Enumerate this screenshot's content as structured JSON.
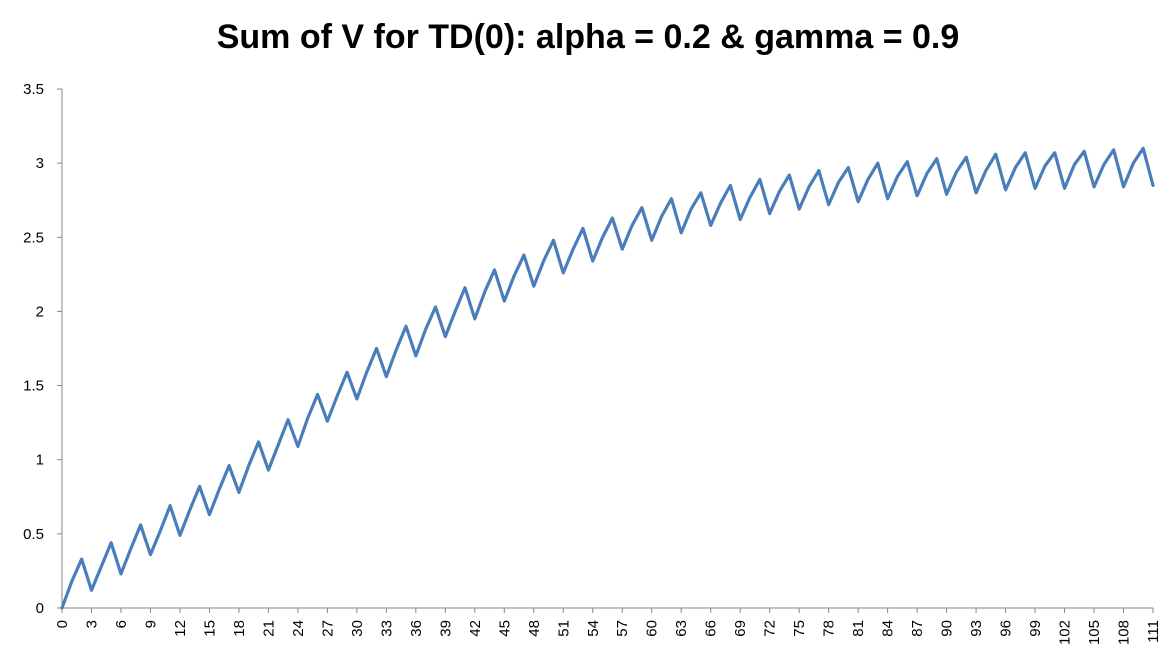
{
  "chart_data": {
    "type": "line",
    "title": "Sum of V for TD(0): alpha = 0.2 & gamma = 0.9",
    "xlabel": "",
    "ylabel": "",
    "ylim": [
      0,
      3.5
    ],
    "yticks": [
      "0",
      "0.5",
      "1",
      "1.5",
      "2",
      "2.5",
      "3",
      "3.5"
    ],
    "xticks": [
      "0",
      "3",
      "6",
      "9",
      "12",
      "15",
      "18",
      "21",
      "24",
      "27",
      "30",
      "33",
      "36",
      "39",
      "42",
      "45",
      "48",
      "51",
      "54",
      "57",
      "60",
      "63",
      "66",
      "69",
      "72",
      "75",
      "78",
      "81",
      "84",
      "87",
      "90",
      "93",
      "96",
      "99",
      "102",
      "105",
      "108",
      "111"
    ],
    "series": [
      {
        "name": "Sum of V",
        "color": "#4a7ebb",
        "x": [
          0,
          1,
          2,
          3,
          4,
          5,
          6,
          7,
          8,
          9,
          10,
          11,
          12,
          13,
          14,
          15,
          16,
          17,
          18,
          19,
          20,
          21,
          22,
          23,
          24,
          25,
          26,
          27,
          28,
          29,
          30,
          31,
          32,
          33,
          34,
          35,
          36,
          37,
          38,
          39,
          40,
          41,
          42,
          43,
          44,
          45,
          46,
          47,
          48,
          49,
          50,
          51,
          52,
          53,
          54,
          55,
          56,
          57,
          58,
          59,
          60,
          61,
          62,
          63,
          64,
          65,
          66,
          67,
          68,
          69,
          70,
          71,
          72,
          73,
          74,
          75,
          76,
          77,
          78,
          79,
          80,
          81,
          82,
          83,
          84,
          85,
          86,
          87,
          88,
          89,
          90,
          91,
          92,
          93,
          94,
          95,
          96,
          97,
          98,
          99,
          100,
          101,
          102,
          103,
          104,
          105,
          106,
          107,
          108,
          109,
          110,
          111
        ],
        "values": [
          0,
          0.18,
          0.33,
          0.12,
          0.28,
          0.44,
          0.23,
          0.4,
          0.56,
          0.36,
          0.52,
          0.69,
          0.49,
          0.66,
          0.82,
          0.63,
          0.8,
          0.96,
          0.78,
          0.96,
          1.12,
          0.93,
          1.1,
          1.27,
          1.09,
          1.28,
          1.44,
          1.26,
          1.43,
          1.59,
          1.41,
          1.59,
          1.75,
          1.56,
          1.74,
          1.9,
          1.7,
          1.88,
          2.03,
          1.83,
          2.0,
          2.16,
          1.95,
          2.13,
          2.28,
          2.07,
          2.24,
          2.38,
          2.17,
          2.34,
          2.48,
          2.26,
          2.42,
          2.56,
          2.34,
          2.5,
          2.63,
          2.42,
          2.58,
          2.7,
          2.48,
          2.64,
          2.76,
          2.53,
          2.69,
          2.8,
          2.58,
          2.73,
          2.85,
          2.62,
          2.77,
          2.89,
          2.66,
          2.81,
          2.92,
          2.69,
          2.84,
          2.95,
          2.72,
          2.87,
          2.97,
          2.74,
          2.89,
          3.0,
          2.76,
          2.91,
          3.01,
          2.78,
          2.93,
          3.03,
          2.79,
          2.94,
          3.04,
          2.8,
          2.95,
          3.06,
          2.82,
          2.97,
          3.07,
          2.83,
          2.98,
          3.07,
          2.83,
          2.99,
          3.08,
          2.84,
          2.99,
          3.09,
          2.84,
          3.0,
          3.1,
          2.85
        ]
      }
    ]
  }
}
